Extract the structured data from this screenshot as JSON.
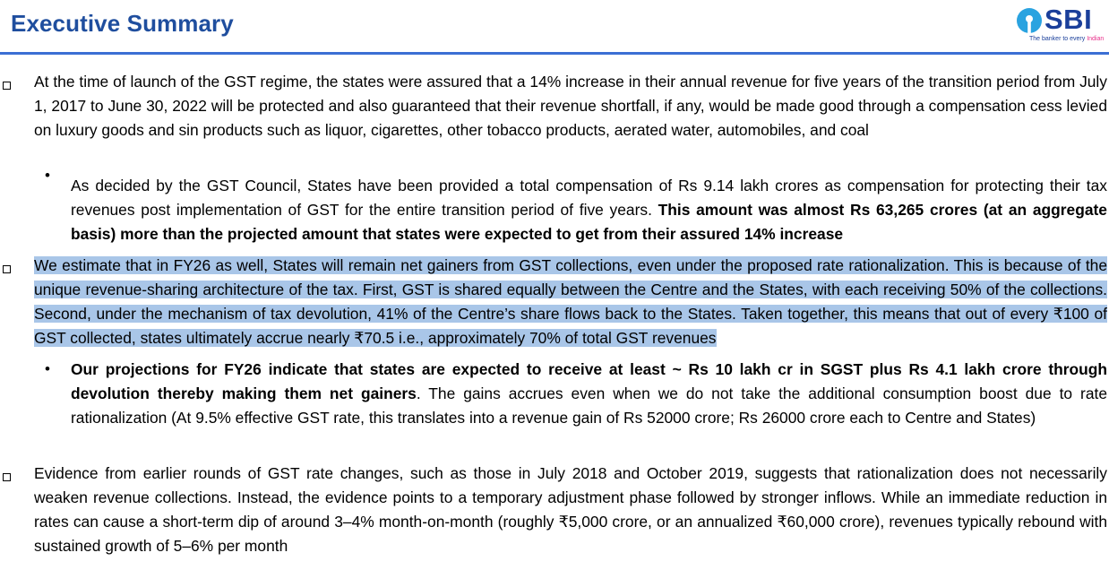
{
  "header": {
    "title": "Executive Summary",
    "logo_text": "SBI",
    "tagline_prefix": "The banker to every ",
    "tagline_accent": "Indian"
  },
  "bullets": {
    "b1": "At the time of launch of the GST regime, the states were assured that a 14% increase in their annual revenue for five years of the transition period from July 1, 2017 to June 30, 2022 will be protected and also guaranteed that their revenue shortfall, if any, would be made good through a compensation cess levied on luxury goods and sin products such as liquor, cigarettes, other tobacco products, aerated water, automobiles, and coal",
    "b1_sub_plain": "As decided by the GST Council, States have been provided a total compensation of Rs 9.14 lakh crores as compensation for protecting their tax revenues post implementation of GST for the entire transition period of five years. ",
    "b1_sub_bold": "This amount was almost Rs 63,265 crores (at an aggregate basis) more than the projected amount that states were expected to get from their assured 14% increase",
    "b2": "We estimate that in FY26 as well, States will remain net gainers from GST collections, even under the proposed rate rationalization. This is because of the unique revenue-sharing architecture of the tax. First, GST is shared equally between the Centre and the States, with each receiving 50% of the collections. Second, under the mechanism of tax devolution, 41% of the Centre’s share flows back to the States. Taken together, this means that out of every ₹100 of GST collected, states ultimately accrue nearly ₹70.5 i.e., approximately 70% of total GST revenues",
    "b2_sub_bold": "Our projections for FY26 indicate that states are expected to receive at least ~ Rs 10 lakh cr in SGST plus Rs 4.1 lakh crore through devolution thereby making them net gainers",
    "b2_sub_plain": ". The gains accrues even when we do not take the additional consumption boost due to rate rationalization (At 9.5% effective GST rate, this translates into a revenue gain of  Rs 52000 crore; Rs 26000 crore each to Centre and States)",
    "b3": "Evidence from earlier rounds of GST rate changes, such as those in July 2018 and October 2019, suggests that rationalization does not necessarily weaken revenue collections. Instead, the evidence points to a temporary adjustment phase followed by stronger inflows. While an immediate reduction in rates can cause a short-term dip of around 3–4% month-on-month (roughly ₹5,000 crore, or an annualized ₹60,000 crore), revenues typically rebound with sustained growth of 5–6% per month"
  },
  "colors": {
    "title": "#1f4e9e",
    "rule": "#3b6fd4",
    "highlight": "#a9c6e8"
  }
}
